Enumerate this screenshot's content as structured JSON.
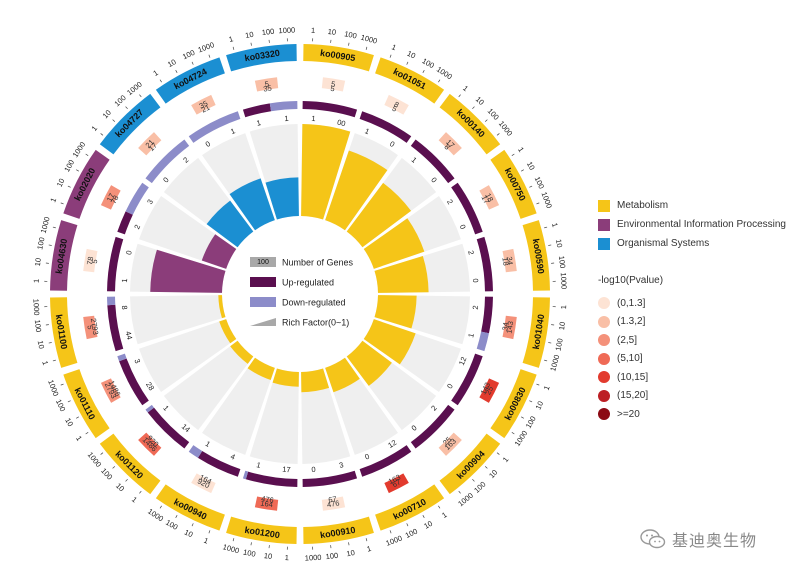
{
  "chart_data": {
    "type": "circos",
    "title": "",
    "categories": [
      {
        "name": "Metabolism",
        "color": "#f5c518"
      },
      {
        "name": "Environmental Information Processing",
        "color": "#8b3d7a"
      },
      {
        "name": "Organismal Systems",
        "color": "#1b8fd2"
      }
    ],
    "outer_ticks": [
      "1",
      "10",
      "100",
      "1000"
    ],
    "terms": [
      {
        "id": "ko00905",
        "category": "Metabolism",
        "background": "5",
        "count": "5",
        "up": "1",
        "down": "00",
        "up_val": 1,
        "down_val": 0,
        "rich": 1.0,
        "pval_class": 0
      },
      {
        "id": "ko01051",
        "category": "Metabolism",
        "background": "8",
        "count": "5",
        "up": "1",
        "down": "0",
        "up_val": 1,
        "down_val": 0,
        "rich": 0.8,
        "pval_class": 0
      },
      {
        "id": "ko00140",
        "category": "Metabolism",
        "background": "17",
        "count": "8",
        "up": "1",
        "down": "0",
        "up_val": 1,
        "down_val": 0,
        "rich": 0.66,
        "pval_class": 1
      },
      {
        "id": "ko00750",
        "category": "Metabolism",
        "background": "18",
        "count": "17",
        "up": "2",
        "down": "0",
        "up_val": 2,
        "down_val": 0,
        "rich": 0.58,
        "pval_class": 1
      },
      {
        "id": "ko00590",
        "category": "Metabolism",
        "background": "34",
        "count": "18",
        "up": "2",
        "down": "0",
        "up_val": 2,
        "down_val": 0,
        "rich": 0.55,
        "pval_class": 1
      },
      {
        "id": "ko01040",
        "category": "Metabolism",
        "background": "143",
        "count": "34",
        "up": "2",
        "down": "1",
        "up_val": 2,
        "down_val": 1,
        "rich": 0.42,
        "pval_class": 2
      },
      {
        "id": "ko00830",
        "category": "Metabolism",
        "background": "25",
        "count": "143",
        "up": "12",
        "down": "0",
        "up_val": 12,
        "down_val": 0,
        "rich": 0.48,
        "pval_class": 4
      },
      {
        "id": "ko00904",
        "category": "Metabolism",
        "background": "163",
        "count": "25",
        "up": "2",
        "down": "0",
        "up_val": 2,
        "down_val": 0,
        "rich": 0.4,
        "pval_class": 1
      },
      {
        "id": "ko00710",
        "category": "Metabolism",
        "background": "67",
        "count": "163",
        "up": "12",
        "down": "0",
        "up_val": 12,
        "down_val": 0,
        "rich": 0.28,
        "pval_class": 4
      },
      {
        "id": "ko00910",
        "category": "Metabolism",
        "background": "476",
        "count": "67",
        "up": "3",
        "down": "0",
        "up_val": 3,
        "down_val": 0,
        "rich": 0.22,
        "pval_class": 0
      },
      {
        "id": "ko01200",
        "category": "Metabolism",
        "background": "164",
        "count": "476",
        "up": "17",
        "down": "1",
        "up_val": 17,
        "down_val": 1,
        "rich": 0.16,
        "pval_class": 3
      },
      {
        "id": "ko00940",
        "category": "Metabolism",
        "background": "920",
        "count": "164",
        "up": "4",
        "down": "1",
        "up_val": 4,
        "down_val": 1,
        "rich": 0.14,
        "pval_class": 0
      },
      {
        "id": "ko01120",
        "category": "Metabolism",
        "background": "1486",
        "count": "920",
        "up": "14",
        "down": "1",
        "up_val": 14,
        "down_val": 1,
        "rich": 0.1,
        "pval_class": 3
      },
      {
        "id": "ko01110",
        "category": "Metabolism",
        "background": "2793",
        "count": "1486",
        "up": "28",
        "down": "3",
        "up_val": 28,
        "down_val": 3,
        "rich": 0.08,
        "pval_class": 2
      },
      {
        "id": "ko01100",
        "category": "Metabolism",
        "background": "5",
        "count": "2793",
        "up": "44",
        "down": "8",
        "up_val": 44,
        "down_val": 8,
        "rich": 0.04,
        "pval_class": 2
      },
      {
        "id": "ko04630",
        "category": "Environmental Information Processing",
        "background": "78",
        "count": "5",
        "up": "1",
        "down": "0",
        "up_val": 1,
        "down_val": 0,
        "rich": 0.78,
        "pval_class": 0
      },
      {
        "id": "ko02020",
        "category": "Environmental Information Processing",
        "background": "17",
        "count": "78",
        "up": "2",
        "down": "3",
        "up_val": 2,
        "down_val": 3,
        "rich": 0.28,
        "pval_class": 2
      },
      {
        "id": "ko04727",
        "category": "Organismal Systems",
        "background": "21",
        "count": "17",
        "up": "0",
        "down": "2",
        "up_val": 0,
        "down_val": 2,
        "rich": 0.42,
        "pval_class": 1
      },
      {
        "id": "ko04724",
        "category": "Organismal Systems",
        "background": "35",
        "count": "21",
        "up": "0",
        "down": "1",
        "up_val": 0,
        "down_val": 1,
        "rich": 0.48,
        "pval_class": 1
      },
      {
        "id": "ko03320",
        "category": "Organismal Systems",
        "background": "5",
        "count": "35",
        "up": "1",
        "down": "1",
        "up_val": 1,
        "down_val": 1,
        "rich": 0.42,
        "pval_class": 1
      }
    ],
    "center_legend": [
      {
        "box": "100",
        "label": "Number of Genes",
        "kind": "gene"
      },
      {
        "box": "",
        "label": "Up-regulated",
        "kind": "up"
      },
      {
        "box": "",
        "label": "Down-regulated",
        "kind": "down"
      },
      {
        "box": "",
        "label": "Rich Factor(0~1)",
        "kind": "rich"
      }
    ],
    "pvalue_legend": {
      "title": "-log10(Pvalue)",
      "items": [
        {
          "label": "(0,1.3]",
          "color": "#fde3d4"
        },
        {
          "label": "(1.3,2]",
          "color": "#f9bfa6"
        },
        {
          "label": "(2,5]",
          "color": "#f4917a"
        },
        {
          "label": "(5,10]",
          "color": "#ef6a56"
        },
        {
          "label": "(10,15]",
          "color": "#e23b2e"
        },
        {
          "label": "(15,20]",
          "color": "#bc1f24"
        },
        {
          "label": ">=20",
          "color": "#8c0a14"
        }
      ]
    },
    "colors": {
      "up": "#5a0f4f",
      "down": "#8c8cc9",
      "rich_bg": "#efefef",
      "gene_box": "#a8a8a8"
    }
  },
  "watermark": "基迪奥生物"
}
